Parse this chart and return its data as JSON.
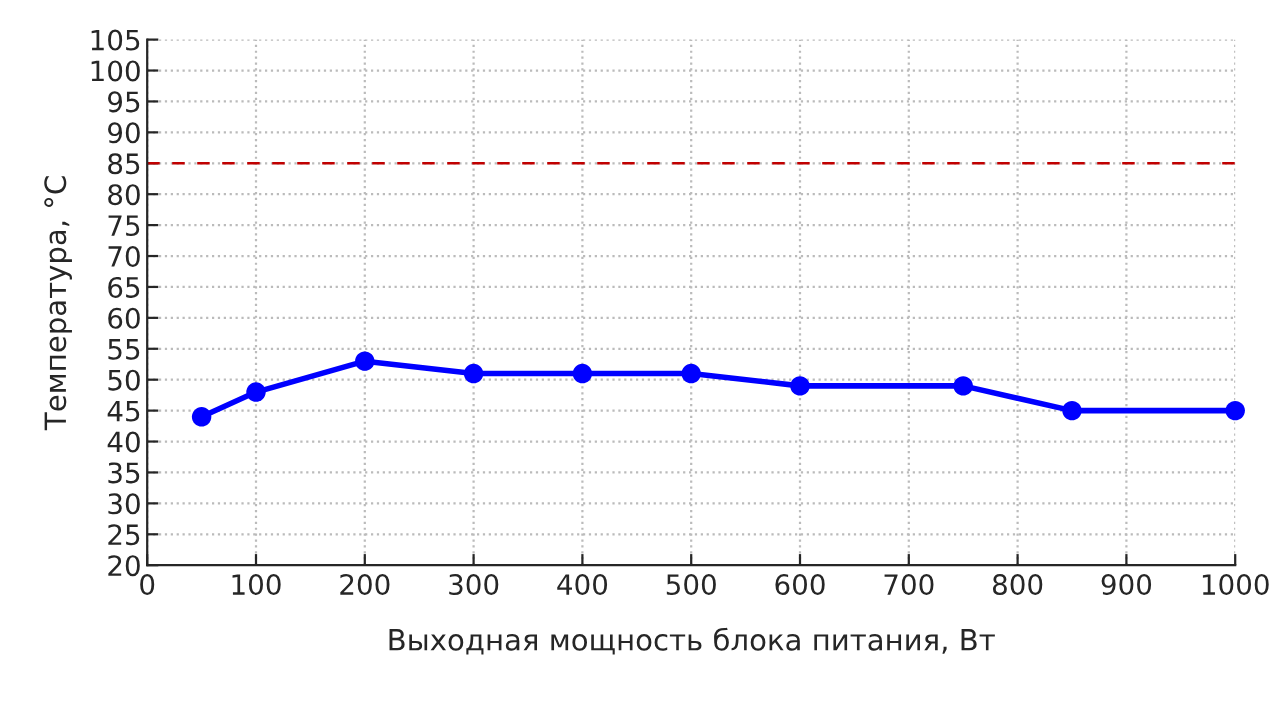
{
  "chart_data": {
    "type": "line",
    "xlabel": "Выходная мощность блока питания, Вт",
    "ylabel": "Температура, °C",
    "series": [
      {
        "color": "#0000ff",
        "x": [
          50,
          100,
          200,
          300,
          400,
          500,
          600,
          750,
          850,
          1000
        ],
        "values": [
          44,
          48,
          53,
          51,
          51,
          51,
          49,
          49,
          45,
          45
        ]
      }
    ],
    "xlim": [
      0,
      1000
    ],
    "xticks": [
      0,
      100,
      200,
      300,
      400,
      500,
      600,
      700,
      800,
      900,
      1000
    ],
    "ylim": [
      20,
      105
    ],
    "yticks": [
      20,
      25,
      30,
      35,
      40,
      45,
      50,
      55,
      60,
      65,
      70,
      75,
      80,
      85,
      90,
      95,
      100,
      105
    ],
    "ref_lines": [
      {
        "axis": "y",
        "value": 85,
        "color": "#c00000",
        "line_style": "dashed"
      }
    ],
    "grid": true,
    "marker": "circle",
    "line_style": "solid"
  }
}
